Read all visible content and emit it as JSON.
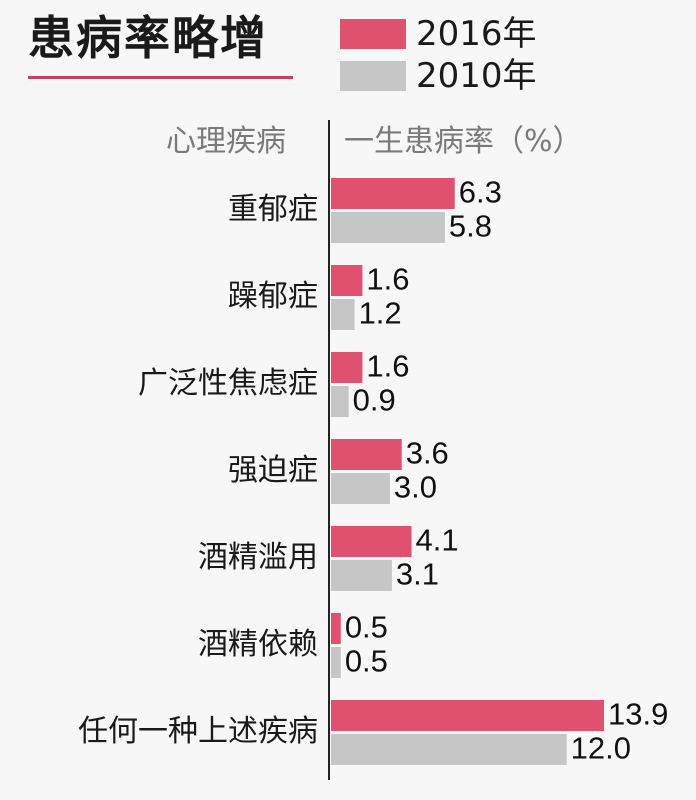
{
  "title": "患病率略增",
  "legend": [
    {
      "label": "2016年",
      "color": "#e0506f"
    },
    {
      "label": "2010年",
      "color": "#c6c6c6"
    }
  ],
  "headers": {
    "category": "心理疾病",
    "value": "一生患病率（%）"
  },
  "chart_data": {
    "type": "bar",
    "orientation": "horizontal",
    "categories": [
      "重郁症",
      "躁郁症",
      "广泛性焦虑症",
      "强迫症",
      "酒精滥用",
      "酒精依赖",
      "任何一种上述疾病"
    ],
    "series": [
      {
        "name": "2016年",
        "color": "#e0506f",
        "values": [
          "6.3",
          "1.6",
          "1.6",
          "3.6",
          "4.1",
          "0.5",
          "13.9"
        ]
      },
      {
        "name": "2010年",
        "color": "#c6c6c6",
        "values": [
          "5.8",
          "1.2",
          "0.9",
          "3.0",
          "3.1",
          "0.5",
          "12.0"
        ]
      }
    ],
    "xlim": [
      0,
      13.9
    ]
  }
}
